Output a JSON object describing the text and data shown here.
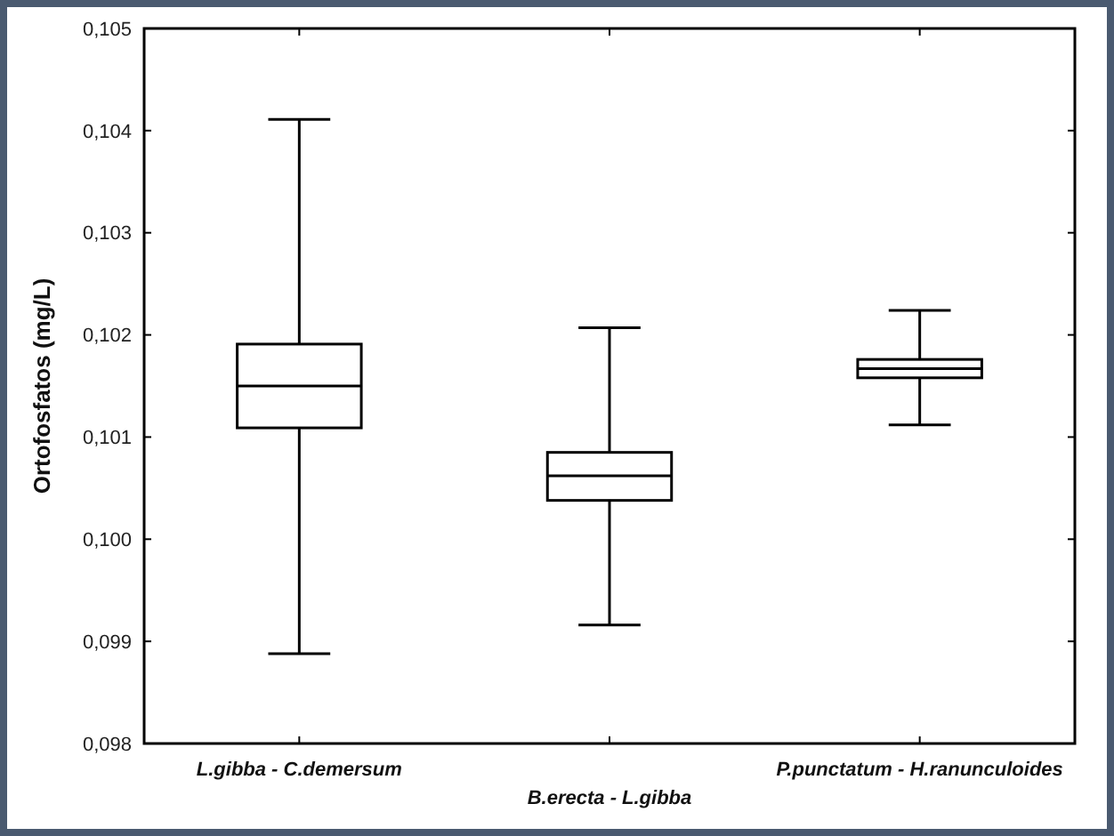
{
  "chart_data": {
    "type": "box",
    "ylabel": "Ortofosfatos (mg/L)",
    "categories": [
      "L.gibba - C.demersum",
      "B.erecta - L.gibba",
      "P.punctatum - H.ranunculoides"
    ],
    "boxes": [
      {
        "low": 0.09888,
        "q1": 0.10109,
        "median": 0.1015,
        "q3": 0.10191,
        "high": 0.10411
      },
      {
        "low": 0.09916,
        "q1": 0.10038,
        "median": 0.10062,
        "q3": 0.10085,
        "high": 0.10207
      },
      {
        "low": 0.10112,
        "q1": 0.10158,
        "median": 0.10167,
        "q3": 0.10176,
        "high": 0.10224
      }
    ],
    "color": "#000000",
    "ylim": [
      0.098,
      0.105
    ],
    "yticks": [
      {
        "value": 0.098,
        "label": "0,098"
      },
      {
        "value": 0.099,
        "label": "0,099"
      },
      {
        "value": 0.1,
        "label": "0,100"
      },
      {
        "value": 0.101,
        "label": "0,101"
      },
      {
        "value": 0.102,
        "label": "0,102"
      },
      {
        "value": 0.103,
        "label": "0,103"
      },
      {
        "value": 0.104,
        "label": "0,104"
      },
      {
        "value": 0.105,
        "label": "0,105"
      }
    ],
    "grid": false
  }
}
